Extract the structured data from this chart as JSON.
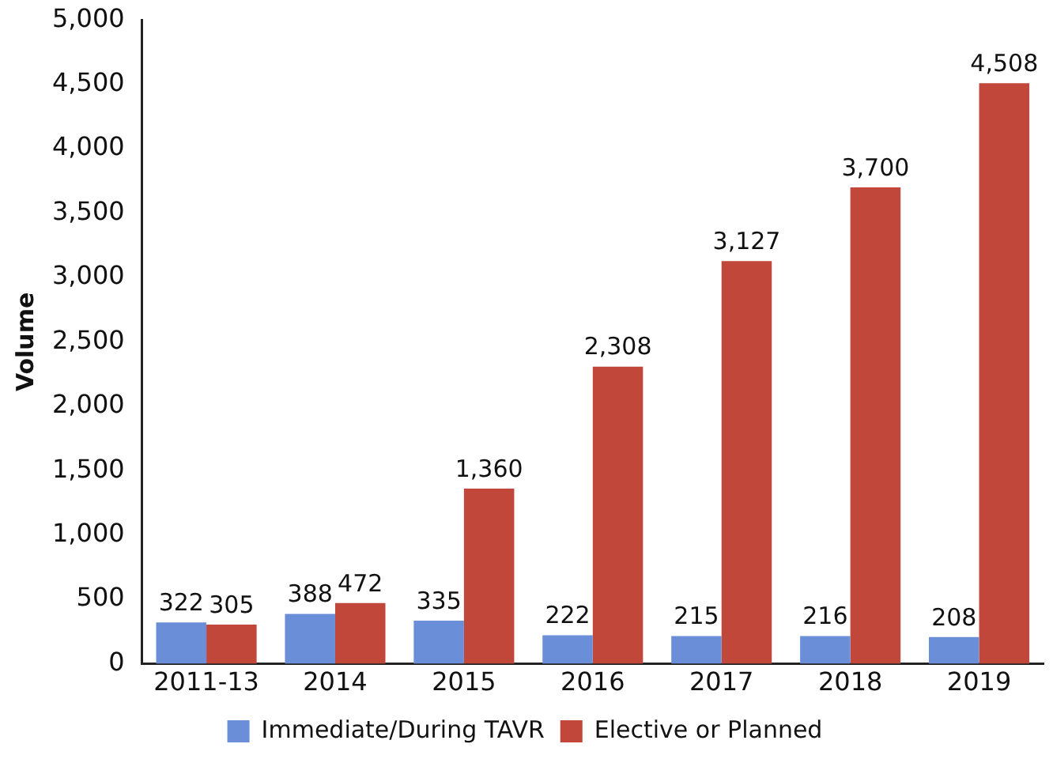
{
  "chart_data": {
    "type": "bar",
    "ylabel": "Volume",
    "categories": [
      "2011-13",
      "2014",
      "2015",
      "2016",
      "2017",
      "2018",
      "2019"
    ],
    "series": [
      {
        "name": "Immediate/During TAVR",
        "color": "#6a8fd8",
        "values": [
          322,
          388,
          335,
          222,
          215,
          216,
          208
        ],
        "value_labels": [
          "322",
          "388",
          "335",
          "222",
          "215",
          "216",
          "208"
        ]
      },
      {
        "name": "Elective or Planned",
        "color": "#c0473a",
        "values": [
          305,
          472,
          1360,
          2308,
          3127,
          3700,
          4508
        ],
        "value_labels": [
          "305",
          "472",
          "1,360",
          "2,308",
          "3,127",
          "3,700",
          "4,508"
        ]
      }
    ],
    "ylim": [
      0,
      5000
    ],
    "yticks": [
      {
        "value": 0,
        "label": "0"
      },
      {
        "value": 500,
        "label": "500"
      },
      {
        "value": 1000,
        "label": "1,000"
      },
      {
        "value": 1500,
        "label": "1,500"
      },
      {
        "value": 2000,
        "label": "2,000"
      },
      {
        "value": 2500,
        "label": "2,500"
      },
      {
        "value": 3000,
        "label": "3,000"
      },
      {
        "value": 3500,
        "label": "3,500"
      },
      {
        "value": 4000,
        "label": "4,000"
      },
      {
        "value": 4500,
        "label": "4,500"
      },
      {
        "value": 5000,
        "label": "5,000"
      }
    ],
    "grid": false,
    "legend": "bottom"
  }
}
